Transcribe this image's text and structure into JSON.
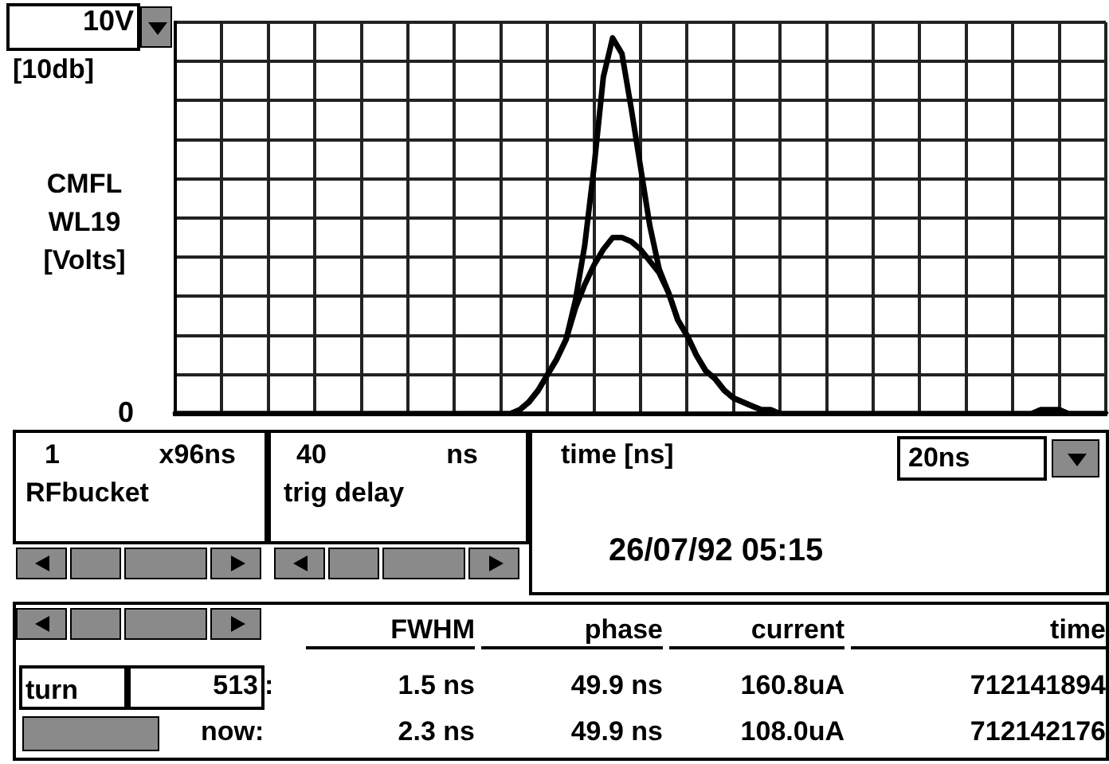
{
  "chart_data": {
    "type": "line",
    "xlabel": "time [ns]",
    "ylabel": "CMFL WL19 [Volts]",
    "categories": [
      null,
      null,
      null,
      null,
      null,
      null,
      null,
      null,
      null,
      null,
      null,
      null,
      null,
      null,
      null,
      null,
      null,
      null,
      null,
      null,
      null,
      null,
      null,
      null,
      null,
      null,
      null,
      null,
      null,
      null,
      null,
      null,
      null,
      null,
      null,
      null,
      null,
      null,
      null,
      null,
      null,
      null,
      null,
      null,
      null,
      null,
      null,
      null,
      null,
      null,
      null,
      null,
      null,
      null,
      null,
      null,
      null,
      null,
      null,
      null,
      null,
      null,
      null,
      null,
      null,
      null,
      null,
      null,
      null,
      null,
      null,
      null,
      null,
      null,
      null,
      null,
      null,
      null,
      null,
      null,
      null,
      null,
      null,
      null,
      null,
      null,
      null,
      null,
      null,
      null,
      null,
      null,
      null,
      null,
      null,
      null,
      null,
      null,
      null,
      null,
      null
    ],
    "series": [
      {
        "color": "#000000",
        "values": [
          0,
          0,
          0,
          0,
          0,
          0,
          0,
          0,
          0,
          0,
          0,
          0,
          0,
          0,
          0,
          0,
          0,
          0,
          0,
          0,
          0,
          0,
          0,
          0,
          0,
          0,
          0,
          0,
          0,
          0,
          0,
          0,
          0,
          0,
          0,
          0,
          0,
          0.1,
          0.3,
          0.6,
          1.0,
          1.4,
          1.9,
          2.9,
          4.3,
          6.3,
          8.6,
          9.6,
          9.2,
          7.8,
          6.3,
          4.8,
          3.7,
          3.1,
          2.4,
          2.0,
          1.5,
          1.1,
          0.9,
          0.6,
          0.4,
          0.3,
          0.2,
          0.1,
          0.1,
          0,
          0,
          0,
          0,
          0,
          0,
          0,
          0,
          0,
          0,
          0,
          0,
          0,
          0,
          0,
          0,
          0,
          0,
          0,
          0,
          0,
          0,
          0,
          0,
          0,
          0,
          0,
          0,
          0.1,
          0.1,
          0.1,
          0,
          0,
          0,
          0,
          0
        ]
      },
      {
        "color": "#000000",
        "values": [
          0,
          0,
          0,
          0,
          0,
          0,
          0,
          0,
          0,
          0,
          0,
          0,
          0,
          0,
          0,
          0,
          0,
          0,
          0,
          0,
          0,
          0,
          0,
          0,
          0,
          0,
          0,
          0,
          0,
          0,
          0,
          0,
          0,
          0,
          0,
          0,
          0,
          0.1,
          0.3,
          0.6,
          1.0,
          1.4,
          1.9,
          2.7,
          3.3,
          3.8,
          4.2,
          4.5,
          4.5,
          4.4,
          4.2,
          3.9,
          3.6,
          3.1,
          2.4,
          2.0,
          1.5,
          1.1,
          0.9,
          0.6,
          0.4,
          0.3,
          0.2,
          0.1,
          0.1,
          0,
          0,
          0,
          0,
          0,
          0,
          0,
          0,
          0,
          0,
          0,
          0,
          0,
          0,
          0,
          0,
          0,
          0,
          0,
          0,
          0,
          0,
          0,
          0,
          0,
          0,
          0,
          0,
          0.1,
          0.1,
          0.1,
          0,
          0,
          0,
          0,
          0
        ]
      }
    ],
    "ylim": [
      0,
      10
    ],
    "yticks": [
      0,
      {
        "value": 1,
        "label": null
      },
      {
        "value": 2,
        "label": null
      },
      {
        "value": 3,
        "label": null
      },
      {
        "value": 4,
        "label": null
      },
      {
        "value": 5,
        "label": null
      },
      {
        "value": 6,
        "label": null
      },
      {
        "value": 7,
        "label": null
      },
      {
        "value": 8,
        "label": null
      },
      {
        "value": 9,
        "label": null
      },
      {
        "value": 10,
        "label": "10V"
      }
    ],
    "grid": true,
    "tick_labels": "y",
    "marker": "none",
    "line_style": "solid",
    "annotations": [
      "[10db]",
      "1",
      "x96ns",
      "RFbucket",
      "40",
      "ns",
      "trig delay",
      "20ns",
      "26/07/92 05:15",
      "FWHM",
      "phase",
      "current",
      "time",
      "turn",
      "513",
      ":",
      "1.5 ns",
      "49.9 ns",
      "160.8uA",
      "712141894",
      "now:",
      "2.3 ns",
      "49.9 ns",
      "108.0uA",
      "712142176"
    ]
  }
}
